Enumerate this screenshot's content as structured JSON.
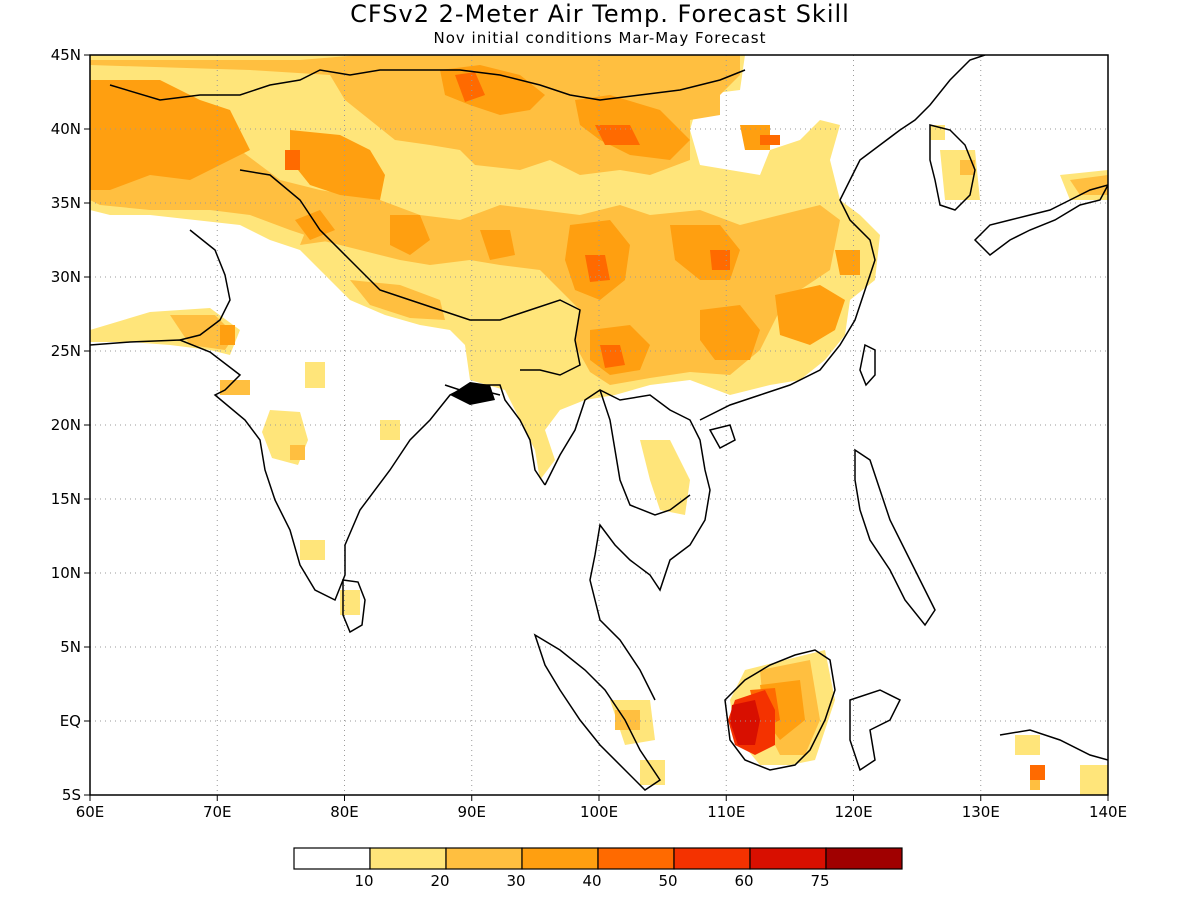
{
  "title": "CFSv2 2-Meter Air Temp. Forecast Skill",
  "subtitle": "Nov initial conditions   Mar-May Forecast",
  "map": {
    "lon_range": [
      60,
      140
    ],
    "lat_range": [
      -5,
      45
    ],
    "x_ticks": [
      {
        "value": 60,
        "label": "60E"
      },
      {
        "value": 70,
        "label": "70E"
      },
      {
        "value": 80,
        "label": "80E"
      },
      {
        "value": 90,
        "label": "90E"
      },
      {
        "value": 100,
        "label": "100E"
      },
      {
        "value": 110,
        "label": "110E"
      },
      {
        "value": 120,
        "label": "120E"
      },
      {
        "value": 130,
        "label": "130E"
      },
      {
        "value": 140,
        "label": "140E"
      }
    ],
    "y_ticks": [
      {
        "value": 45,
        "label": "45N"
      },
      {
        "value": 40,
        "label": "40N"
      },
      {
        "value": 35,
        "label": "35N"
      },
      {
        "value": 30,
        "label": "30N"
      },
      {
        "value": 25,
        "label": "25N"
      },
      {
        "value": 20,
        "label": "20N"
      },
      {
        "value": 15,
        "label": "15N"
      },
      {
        "value": 10,
        "label": "10N"
      },
      {
        "value": 5,
        "label": "5N"
      },
      {
        "value": 0,
        "label": "EQ"
      },
      {
        "value": -5,
        "label": "5S"
      }
    ],
    "grid": true,
    "grid_style": "dotted",
    "coastlines": true
  },
  "colorbar": {
    "colors": [
      "#ffffff",
      "#ffe57a",
      "#ffbf40",
      "#ff9f10",
      "#ff6a00",
      "#f43200",
      "#d80f00",
      "#a00000"
    ],
    "boundaries": [
      "10",
      "20",
      "30",
      "40",
      "50",
      "60",
      "75"
    ]
  },
  "skill_regions": [
    {
      "level": 1,
      "color": "#ffe57a",
      "description": "Central Asia / Tibet / China broad area"
    },
    {
      "level": 2,
      "color": "#ffbf40",
      "description": "Western Asia, Mongolia, central China"
    },
    {
      "level": 3,
      "color": "#ff9f10",
      "description": "Tibet, Sichuan, southeast China"
    },
    {
      "level": 4,
      "color": "#ff6a00",
      "description": "Local maxima in China"
    },
    {
      "level": 6,
      "color": "#d80f00",
      "description": "Western Borneo maximum"
    }
  ]
}
